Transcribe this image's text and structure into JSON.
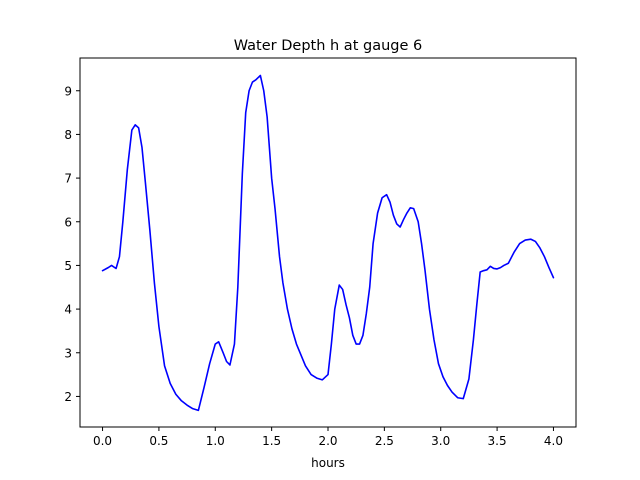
{
  "chart_data": {
    "type": "line",
    "title": "Water Depth h at gauge 6",
    "xlabel": "hours",
    "ylabel": "",
    "xlim": [
      -0.2,
      4.2
    ],
    "ylim": [
      1.3,
      9.75
    ],
    "xticks": [
      0.0,
      0.5,
      1.0,
      1.5,
      2.0,
      2.5,
      3.0,
      3.5,
      4.0
    ],
    "xtick_labels": [
      "0.0",
      "0.5",
      "1.0",
      "1.5",
      "2.0",
      "2.5",
      "3.0",
      "3.5",
      "4.0"
    ],
    "yticks": [
      2,
      3,
      4,
      5,
      6,
      7,
      8,
      9
    ],
    "ytick_labels": [
      "2",
      "3",
      "4",
      "5",
      "6",
      "7",
      "8",
      "9"
    ],
    "grid": false,
    "series": [
      {
        "color": "#0000ff",
        "x": [
          0.0,
          0.05,
          0.08,
          0.12,
          0.15,
          0.18,
          0.22,
          0.26,
          0.29,
          0.32,
          0.35,
          0.38,
          0.42,
          0.46,
          0.5,
          0.55,
          0.6,
          0.65,
          0.7,
          0.75,
          0.8,
          0.85,
          0.9,
          0.95,
          1.0,
          1.03,
          1.07,
          1.1,
          1.13,
          1.17,
          1.2,
          1.24,
          1.27,
          1.3,
          1.33,
          1.36,
          1.4,
          1.43,
          1.46,
          1.5,
          1.53,
          1.57,
          1.6,
          1.64,
          1.68,
          1.72,
          1.76,
          1.8,
          1.85,
          1.9,
          1.95,
          2.0,
          2.03,
          2.06,
          2.1,
          2.13,
          2.16,
          2.19,
          2.22,
          2.25,
          2.28,
          2.31,
          2.34,
          2.37,
          2.4,
          2.44,
          2.48,
          2.52,
          2.55,
          2.58,
          2.61,
          2.64,
          2.67,
          2.7,
          2.73,
          2.76,
          2.8,
          2.83,
          2.86,
          2.9,
          2.94,
          2.98,
          3.02,
          3.06,
          3.1,
          3.15,
          3.2,
          3.25,
          3.29,
          3.32,
          3.35,
          3.38,
          3.41,
          3.44,
          3.47,
          3.5,
          3.53,
          3.56,
          3.6,
          3.65,
          3.7,
          3.75,
          3.8,
          3.84,
          3.88,
          3.92,
          3.96,
          4.0
        ],
        "y": [
          4.88,
          4.95,
          5.0,
          4.93,
          5.2,
          6.0,
          7.2,
          8.1,
          8.22,
          8.15,
          7.7,
          6.9,
          5.8,
          4.6,
          3.6,
          2.7,
          2.3,
          2.05,
          1.9,
          1.8,
          1.72,
          1.68,
          2.2,
          2.75,
          3.2,
          3.25,
          3.0,
          2.8,
          2.72,
          3.2,
          4.5,
          7.1,
          8.5,
          9.0,
          9.2,
          9.25,
          9.35,
          9.0,
          8.4,
          7.0,
          6.3,
          5.2,
          4.6,
          4.0,
          3.55,
          3.2,
          2.95,
          2.7,
          2.5,
          2.42,
          2.38,
          2.5,
          3.2,
          4.0,
          4.55,
          4.45,
          4.1,
          3.8,
          3.4,
          3.2,
          3.2,
          3.4,
          3.9,
          4.5,
          5.5,
          6.2,
          6.55,
          6.62,
          6.45,
          6.15,
          5.95,
          5.88,
          6.05,
          6.2,
          6.32,
          6.3,
          6.0,
          5.5,
          4.9,
          4.0,
          3.3,
          2.75,
          2.45,
          2.25,
          2.1,
          1.97,
          1.95,
          2.4,
          3.3,
          4.1,
          4.85,
          4.88,
          4.9,
          4.98,
          4.93,
          4.92,
          4.95,
          5.0,
          5.05,
          5.3,
          5.5,
          5.58,
          5.6,
          5.55,
          5.4,
          5.2,
          4.95,
          4.72
        ]
      }
    ]
  }
}
